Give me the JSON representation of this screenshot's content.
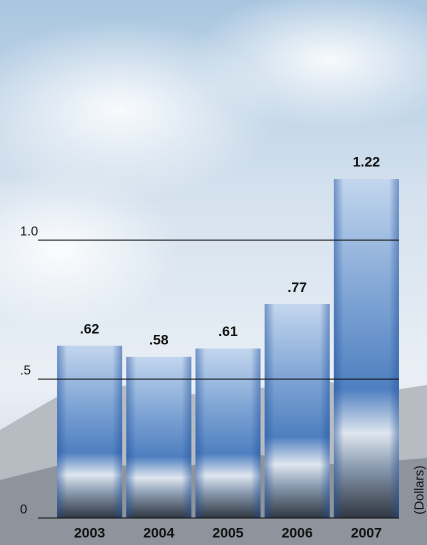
{
  "chart_data": {
    "type": "bar",
    "categories": [
      "2003",
      "2004",
      "2005",
      "2006",
      "2007"
    ],
    "values": [
      0.62,
      0.58,
      0.61,
      0.77,
      1.22
    ],
    "value_labels": [
      ".62",
      ".58",
      ".61",
      ".77",
      "1.22"
    ],
    "y_label": "(Dollars)",
    "ylim": [
      0,
      1.4
    ],
    "yticks": [
      0,
      {
        "value": 0.5,
        "label": ".5"
      },
      {
        "value": 1.0,
        "label": "1.0"
      }
    ],
    "grid": true
  }
}
